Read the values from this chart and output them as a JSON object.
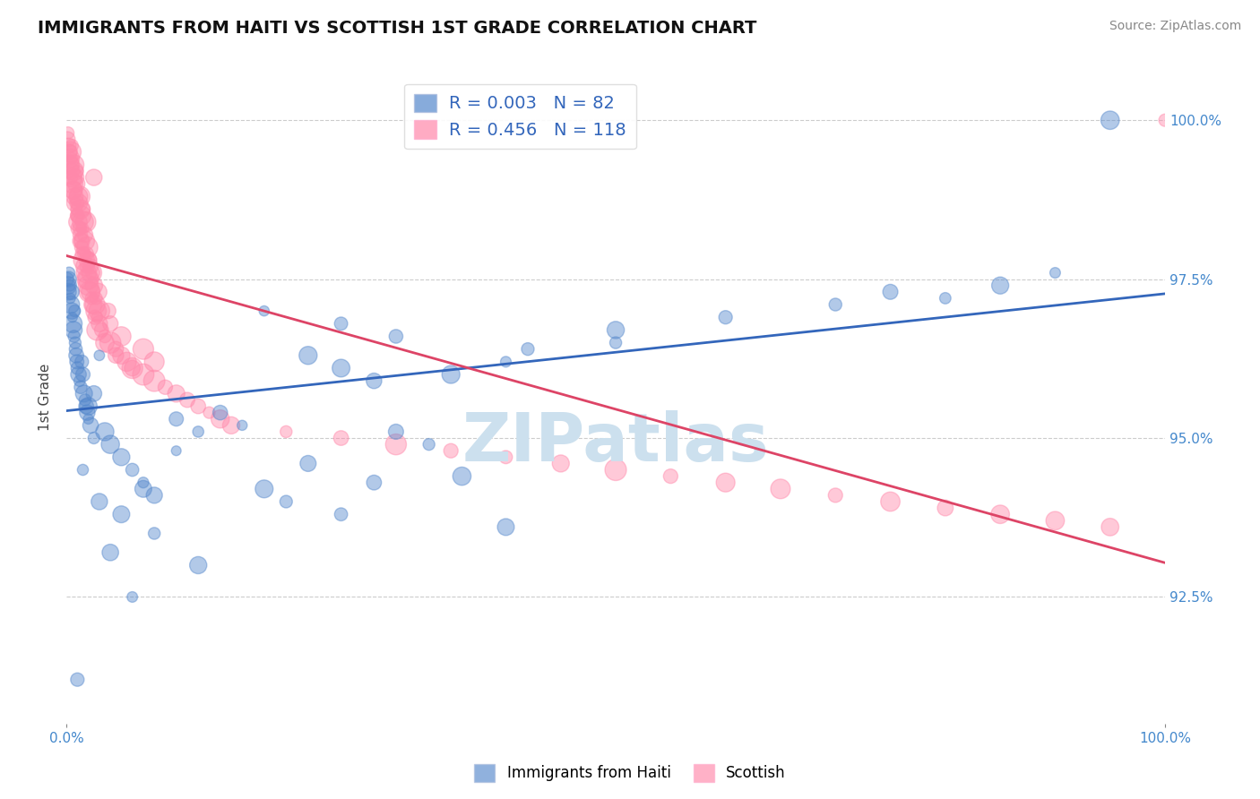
{
  "title": "IMMIGRANTS FROM HAITI VS SCOTTISH 1ST GRADE CORRELATION CHART",
  "source": "Source: ZipAtlas.com",
  "ylabel": "1st Grade",
  "y_ticks": [
    92.5,
    95.0,
    97.5,
    100.0
  ],
  "xlim": [
    0.0,
    100.0
  ],
  "ylim": [
    90.5,
    100.8
  ],
  "legend_entries": [
    {
      "label": "R = 0.003   N = 82"
    },
    {
      "label": "R = 0.456   N = 118"
    }
  ],
  "legend_bottom": [
    "Immigrants from Haiti",
    "Scottish"
  ],
  "blue_color": "#5588cc",
  "pink_color": "#ff88aa",
  "trend_blue": "#3366bb",
  "trend_pink": "#dd4466",
  "watermark": "ZIPatlas",
  "watermark_color": "#cce0ee",
  "background": "#ffffff",
  "grid_color": "#cccccc",
  "blue_x": [
    0.05,
    0.1,
    0.15,
    0.2,
    0.25,
    0.3,
    0.35,
    0.4,
    0.45,
    0.5,
    0.55,
    0.6,
    0.65,
    0.7,
    0.75,
    0.8,
    0.85,
    0.9,
    0.95,
    1.0,
    1.1,
    1.2,
    1.3,
    1.4,
    1.5,
    1.6,
    1.7,
    1.8,
    1.9,
    2.0,
    2.2,
    2.5,
    3.0,
    3.5,
    4.0,
    5.0,
    6.0,
    7.0,
    8.0,
    10.0,
    12.0,
    14.0,
    16.0,
    18.0,
    20.0,
    22.0,
    25.0,
    28.0,
    30.0,
    33.0,
    36.0,
    40.0,
    22.0,
    25.0,
    28.0,
    35.0,
    40.0,
    50.0,
    18.0,
    25.0,
    30.0,
    42.0,
    50.0,
    60.0,
    70.0,
    75.0,
    80.0,
    85.0,
    90.0,
    95.0,
    7.0,
    8.0,
    10.0,
    12.0,
    3.0,
    4.0,
    5.0,
    6.0,
    1.0,
    1.5,
    2.0,
    2.5
  ],
  "blue_y": [
    97.5,
    97.4,
    97.3,
    97.5,
    97.6,
    97.4,
    97.2,
    97.1,
    97.3,
    97.0,
    96.9,
    96.8,
    96.7,
    96.6,
    97.0,
    96.5,
    96.4,
    96.3,
    96.2,
    96.1,
    96.0,
    95.9,
    95.8,
    96.2,
    96.0,
    95.7,
    95.6,
    95.5,
    95.4,
    95.3,
    95.2,
    95.0,
    96.3,
    95.1,
    94.9,
    94.7,
    94.5,
    94.3,
    94.1,
    95.3,
    95.1,
    95.4,
    95.2,
    94.2,
    94.0,
    94.6,
    93.8,
    94.3,
    95.1,
    94.9,
    94.4,
    93.6,
    96.3,
    96.1,
    95.9,
    96.0,
    96.2,
    96.5,
    97.0,
    96.8,
    96.6,
    96.4,
    96.7,
    96.9,
    97.1,
    97.3,
    97.2,
    97.4,
    97.6,
    100.0,
    94.2,
    93.5,
    94.8,
    93.0,
    94.0,
    93.2,
    93.8,
    92.5,
    91.2,
    94.5,
    95.5,
    95.7
  ],
  "pink_x": [
    0.1,
    0.15,
    0.2,
    0.25,
    0.3,
    0.35,
    0.4,
    0.45,
    0.5,
    0.55,
    0.6,
    0.65,
    0.7,
    0.75,
    0.8,
    0.85,
    0.9,
    0.95,
    1.0,
    1.05,
    1.1,
    1.15,
    1.2,
    1.25,
    1.3,
    1.35,
    1.4,
    1.45,
    1.5,
    1.55,
    1.6,
    1.65,
    1.7,
    1.75,
    1.8,
    1.85,
    1.9,
    1.95,
    2.0,
    2.1,
    2.2,
    2.3,
    2.4,
    2.5,
    2.6,
    2.7,
    2.8,
    2.9,
    3.0,
    3.2,
    3.5,
    3.8,
    4.0,
    4.5,
    5.0,
    5.5,
    6.0,
    7.0,
    8.0,
    9.0,
    10.0,
    11.0,
    12.0,
    13.0,
    14.0,
    15.0,
    20.0,
    25.0,
    30.0,
    35.0,
    40.0,
    45.0,
    50.0,
    55.0,
    60.0,
    65.0,
    70.0,
    75.0,
    80.0,
    85.0,
    90.0,
    95.0,
    100.0,
    0.2,
    0.3,
    0.4,
    0.5,
    0.6,
    0.7,
    0.8,
    0.9,
    1.0,
    1.1,
    1.2,
    1.3,
    1.4,
    1.5,
    1.6,
    1.7,
    1.8,
    1.9,
    2.0,
    2.1,
    2.2,
    2.3,
    2.4,
    2.5,
    2.6,
    2.7,
    2.8,
    3.0,
    3.5,
    4.0,
    4.5,
    5.0,
    6.0,
    7.0,
    8.0
  ],
  "pink_y": [
    99.7,
    99.8,
    99.6,
    99.5,
    99.4,
    99.3,
    99.5,
    99.2,
    99.6,
    99.1,
    99.0,
    98.9,
    99.3,
    98.8,
    98.7,
    99.1,
    98.6,
    98.5,
    99.2,
    98.4,
    98.3,
    98.7,
    98.8,
    98.2,
    98.1,
    98.5,
    98.0,
    98.3,
    97.9,
    98.6,
    97.8,
    98.1,
    97.7,
    98.4,
    97.6,
    97.9,
    97.5,
    97.8,
    97.4,
    97.3,
    97.7,
    97.2,
    97.6,
    99.1,
    97.1,
    97.0,
    96.9,
    97.3,
    96.8,
    96.7,
    96.6,
    97.0,
    96.5,
    96.4,
    96.3,
    96.2,
    96.1,
    96.0,
    95.9,
    95.8,
    95.7,
    95.6,
    95.5,
    95.4,
    95.3,
    95.2,
    95.1,
    95.0,
    94.9,
    94.8,
    94.7,
    94.6,
    94.5,
    94.4,
    94.3,
    94.2,
    94.1,
    94.0,
    93.9,
    93.8,
    93.7,
    93.6,
    100.0,
    99.3,
    99.5,
    99.1,
    99.4,
    98.9,
    99.2,
    98.7,
    99.0,
    98.5,
    98.8,
    98.3,
    98.6,
    98.1,
    98.4,
    97.9,
    98.2,
    97.7,
    98.0,
    97.5,
    97.8,
    97.3,
    97.6,
    97.1,
    97.4,
    96.9,
    97.2,
    96.7,
    97.0,
    96.5,
    96.8,
    96.3,
    96.6,
    96.1,
    96.4,
    96.2
  ]
}
